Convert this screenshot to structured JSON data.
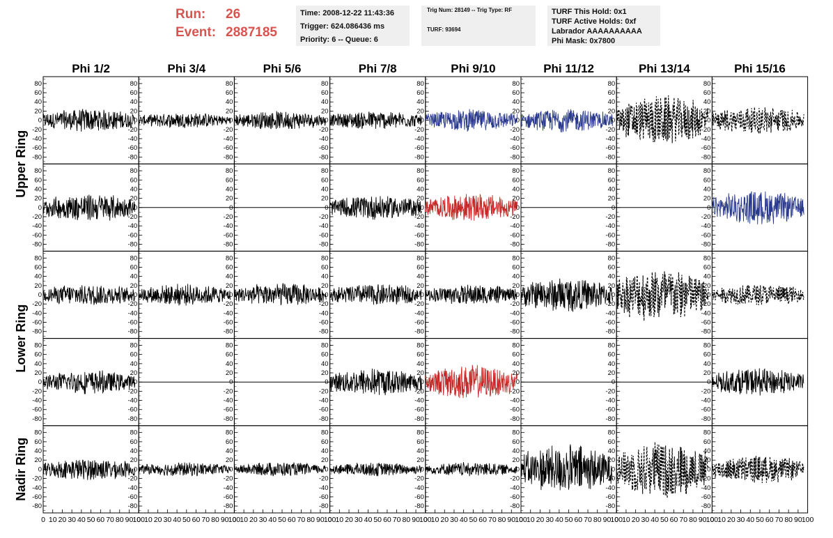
{
  "header": {
    "run_label": "Run:",
    "run_value": "26",
    "event_label": "Event:",
    "event_value": "2887185"
  },
  "info_boxes": {
    "time": "Time: 2008-12-22 11:43:36",
    "trigger": "Trigger: 624.086436 ms",
    "priority": "Priority: 6 -- Queue: 6",
    "trig_num": "Trig Num: 28149 -- Trig Type: RF",
    "turf": "TURF: 93694",
    "turf_this_hold": "TURF This Hold: 0x1",
    "turf_active_holds": "TURF Active Holds: 0xf",
    "labrador": "Labrador AAAAAAAAAA",
    "phi_mask": "Phi Mask: 0x7800"
  },
  "colors": {
    "normal": "#000000",
    "blue": "#2b3a8f",
    "red": "#c62828",
    "header_red": "#d9534f"
  },
  "chart_data": {
    "type": "line",
    "columns": [
      "Phi 1/2",
      "Phi 3/4",
      "Phi 5/6",
      "Phi 7/8",
      "Phi 9/10",
      "Phi 11/12",
      "Phi 13/14",
      "Phi 15/16"
    ],
    "rows": [
      "Upper Ring",
      "Upper Ring",
      "Lower Ring",
      "Lower Ring",
      "Nadir Ring"
    ],
    "row_groups": [
      {
        "label": "Upper Ring",
        "rows": [
          0,
          1
        ]
      },
      {
        "label": "Lower Ring",
        "rows": [
          2,
          3
        ]
      },
      {
        "label": "Nadir Ring",
        "rows": [
          4
        ]
      }
    ],
    "ylim": [
      -95,
      95
    ],
    "y_ticks": [
      -80,
      -60,
      -40,
      -20,
      0,
      20,
      40,
      60,
      80
    ],
    "xlim": [
      0,
      100
    ],
    "x_ticks": [
      0,
      10,
      20,
      30,
      40,
      50,
      60,
      70,
      80,
      90,
      100
    ],
    "x_tick_labels": [
      "0",
      "10",
      "20",
      "30",
      "40",
      "50",
      "60",
      "70",
      "80",
      "90",
      "100"
    ],
    "trace_x_range": [
      0,
      96
    ],
    "panels": [
      [
        {
          "amp": 15,
          "style": "solid",
          "color": "normal"
        },
        {
          "amp": 10,
          "style": "solid",
          "color": "normal"
        },
        {
          "amp": 12,
          "style": "solid",
          "color": "normal"
        },
        {
          "amp": 12,
          "style": "solid",
          "color": "normal"
        },
        {
          "amp": 14,
          "style": "solid",
          "color": "blue"
        },
        {
          "amp": 15,
          "style": "solid",
          "color": "blue"
        },
        {
          "amp": 32,
          "style": "dashed",
          "color": "normal"
        },
        {
          "amp": 18,
          "style": "dashed",
          "color": "normal"
        }
      ],
      [
        {
          "amp": 18,
          "style": "solid",
          "color": "normal"
        },
        {
          "amp": 0,
          "style": "flat",
          "color": "normal"
        },
        {
          "amp": 0,
          "style": "flat",
          "color": "normal"
        },
        {
          "amp": 16,
          "style": "solid",
          "color": "normal"
        },
        {
          "amp": 18,
          "style": "solid",
          "color": "red"
        },
        {
          "amp": 0,
          "style": "flat",
          "color": "normal"
        },
        {
          "amp": 0,
          "style": "flat",
          "color": "normal"
        },
        {
          "amp": 22,
          "style": "solid",
          "color": "blue"
        }
      ],
      [
        {
          "amp": 14,
          "style": "solid",
          "color": "normal"
        },
        {
          "amp": 14,
          "style": "solid",
          "color": "normal"
        },
        {
          "amp": 15,
          "style": "solid",
          "color": "normal"
        },
        {
          "amp": 14,
          "style": "solid",
          "color": "normal"
        },
        {
          "amp": 13,
          "style": "solid",
          "color": "normal"
        },
        {
          "amp": 22,
          "style": "solid",
          "color": "normal"
        },
        {
          "amp": 36,
          "style": "dashed",
          "color": "normal"
        },
        {
          "amp": 14,
          "style": "dashed",
          "color": "normal"
        }
      ],
      [
        {
          "amp": 15,
          "style": "solid",
          "color": "normal"
        },
        {
          "amp": 0,
          "style": "flat",
          "color": "normal"
        },
        {
          "amp": 0,
          "style": "flat",
          "color": "normal"
        },
        {
          "amp": 18,
          "style": "solid",
          "color": "normal"
        },
        {
          "amp": 22,
          "style": "solid",
          "color": "red"
        },
        {
          "amp": 0,
          "style": "flat",
          "color": "normal"
        },
        {
          "amp": 0,
          "style": "flat",
          "color": "normal"
        },
        {
          "amp": 18,
          "style": "solid",
          "color": "normal"
        }
      ],
      [
        {
          "amp": 14,
          "style": "solid",
          "color": "normal"
        },
        {
          "amp": 9,
          "style": "solid",
          "color": "normal"
        },
        {
          "amp": 9,
          "style": "solid",
          "color": "normal"
        },
        {
          "amp": 9,
          "style": "solid",
          "color": "normal"
        },
        {
          "amp": 9,
          "style": "solid",
          "color": "normal"
        },
        {
          "amp": 32,
          "style": "solid",
          "color": "normal"
        },
        {
          "amp": 36,
          "style": "dashed",
          "color": "normal"
        },
        {
          "amp": 18,
          "style": "dashed",
          "color": "normal"
        }
      ]
    ]
  }
}
